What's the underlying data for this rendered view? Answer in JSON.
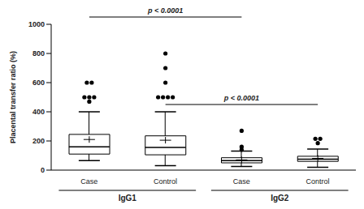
{
  "chart_data": {
    "type": "box",
    "y_label": "Placental transfer ratio (%)",
    "categories": [
      "Case",
      "Control",
      "Case",
      "Control"
    ],
    "groups": [
      "IgG1",
      "IgG1",
      "IgG2",
      "IgG2"
    ],
    "whisker_low": [
      65,
      30,
      25,
      20
    ],
    "q1": [
      110,
      105,
      50,
      60
    ],
    "median": [
      160,
      155,
      65,
      75
    ],
    "mean": [
      210,
      205,
      70,
      80
    ],
    "q3": [
      245,
      235,
      85,
      95
    ],
    "whisker_high": [
      400,
      400,
      130,
      145
    ],
    "outliers": [
      [
        470,
        500,
        500,
        500,
        600,
        600
      ],
      [
        500,
        500,
        500,
        500,
        600,
        700,
        800
      ],
      [
        140,
        160,
        270
      ],
      [
        185,
        215,
        215
      ]
    ],
    "ylim": [
      0,
      1000
    ],
    "yticks": [
      0,
      200,
      400,
      600,
      800,
      1000
    ],
    "annotations": [
      {
        "text": "p < 0.0001",
        "from": 0,
        "to": 2
      },
      {
        "text": "p < 0.0001",
        "from": 1,
        "to": 3
      }
    ],
    "color": "#000000"
  }
}
